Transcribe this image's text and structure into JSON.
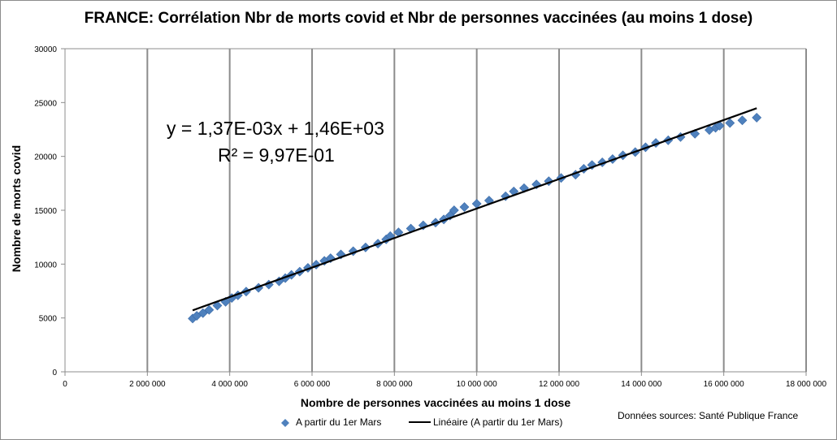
{
  "chart_data": {
    "type": "scatter",
    "title": "FRANCE: Corrélation Nbr de morts covid et Nbr de personnes vaccinées (au moins 1 dose)",
    "xlabel": "Nombre de personnes vaccinées au moins 1 dose",
    "ylabel": "Nombre de morts covid",
    "xlim": [
      0,
      18000000
    ],
    "ylim": [
      0,
      30000
    ],
    "x_ticks": [
      "0",
      "2 000 000",
      "4 000 000",
      "6 000 000",
      "8 000 000",
      "10 000 000",
      "12 000 000",
      "14 000 000",
      "16 000 000",
      "18 000 000"
    ],
    "y_ticks": [
      "0",
      "5000",
      "10000",
      "15000",
      "20000",
      "25000",
      "30000"
    ],
    "x_tick_values": [
      0,
      2000000,
      4000000,
      6000000,
      8000000,
      10000000,
      12000000,
      14000000,
      16000000,
      18000000
    ],
    "y_tick_values": [
      0,
      5000,
      10000,
      15000,
      20000,
      25000,
      30000
    ],
    "grid": "vertical major gridlines",
    "legend_position": "bottom",
    "series": [
      {
        "name": "A partir du 1er Mars",
        "color": "#4F81BD",
        "marker": "diamond",
        "points": [
          [
            3100000,
            4950
          ],
          [
            3200000,
            5200
          ],
          [
            3350000,
            5450
          ],
          [
            3500000,
            5750
          ],
          [
            3700000,
            6150
          ],
          [
            3900000,
            6500
          ],
          [
            4050000,
            6850
          ],
          [
            4200000,
            7100
          ],
          [
            4400000,
            7450
          ],
          [
            4700000,
            7800
          ],
          [
            4950000,
            8100
          ],
          [
            5200000,
            8400
          ],
          [
            5350000,
            8700
          ],
          [
            5500000,
            9000
          ],
          [
            5700000,
            9300
          ],
          [
            5900000,
            9650
          ],
          [
            6100000,
            9950
          ],
          [
            6300000,
            10300
          ],
          [
            6450000,
            10550
          ],
          [
            6700000,
            10900
          ],
          [
            7000000,
            11200
          ],
          [
            7300000,
            11550
          ],
          [
            7600000,
            11900
          ],
          [
            7800000,
            12300
          ],
          [
            7900000,
            12600
          ],
          [
            8100000,
            12950
          ],
          [
            8400000,
            13300
          ],
          [
            8700000,
            13600
          ],
          [
            9000000,
            13850
          ],
          [
            9200000,
            14150
          ],
          [
            9350000,
            14500
          ],
          [
            9450000,
            15000
          ],
          [
            9700000,
            15300
          ],
          [
            10000000,
            15600
          ],
          [
            10300000,
            15900
          ],
          [
            10700000,
            16300
          ],
          [
            10900000,
            16750
          ],
          [
            11150000,
            17050
          ],
          [
            11450000,
            17400
          ],
          [
            11750000,
            17700
          ],
          [
            12050000,
            18000
          ],
          [
            12400000,
            18300
          ],
          [
            12600000,
            18850
          ],
          [
            12800000,
            19200
          ],
          [
            13050000,
            19450
          ],
          [
            13300000,
            19750
          ],
          [
            13550000,
            20100
          ],
          [
            13850000,
            20400
          ],
          [
            14100000,
            20850
          ],
          [
            14350000,
            21250
          ],
          [
            14650000,
            21500
          ],
          [
            14950000,
            21800
          ],
          [
            15300000,
            22100
          ],
          [
            15650000,
            22450
          ],
          [
            15800000,
            22650
          ],
          [
            15900000,
            22850
          ],
          [
            16150000,
            23100
          ],
          [
            16450000,
            23350
          ],
          [
            16800000,
            23600
          ]
        ]
      }
    ],
    "trendline": {
      "name": "Linéaire (A partir du 1er Mars)",
      "color": "#000000",
      "slope": 0.00137,
      "intercept": 1460,
      "x_range": [
        3100000,
        16800000
      ],
      "equation": "y = 1,37E-03x + 1,46E+03",
      "r2": "R² = 9,97E-01"
    },
    "source": "Données sources: Santé Publique France"
  }
}
